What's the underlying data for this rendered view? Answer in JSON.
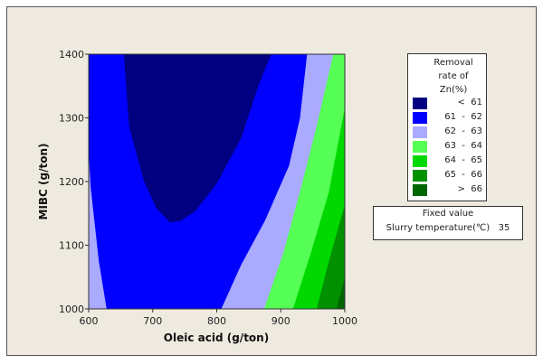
{
  "chart_data": {
    "type": "contour",
    "xlabel": "Oleic acid (g/ton)",
    "ylabel": "MIBC (g/ton)",
    "xlim": [
      600,
      1000
    ],
    "ylim": [
      1000,
      1400
    ],
    "xticks": [
      600,
      700,
      800,
      900,
      1000
    ],
    "yticks": [
      1000,
      1100,
      1200,
      1300,
      1400
    ],
    "legend": {
      "title_lines": [
        "Removal",
        "rate of",
        "Zn(%)"
      ],
      "placement": "right",
      "entries": [
        {
          "label": "<  61",
          "color": "#000080"
        },
        {
          "label": "61  -  62",
          "color": "#0000ff"
        },
        {
          "label": "62  -  63",
          "color": "#aaaaff"
        },
        {
          "label": "63  -  64",
          "color": "#55ff55"
        },
        {
          "label": "64  -  65",
          "color": "#00d800"
        },
        {
          "label": ">  66",
          "color": "#006600"
        }
      ]
    },
    "legend_entries_full": [
      {
        "label": "<  61",
        "color": "#000080"
      },
      {
        "label": "61  -  62",
        "color": "#0000ff"
      },
      {
        "label": "62  -  63",
        "color": "#aaaaff"
      },
      {
        "label": "63  -  64",
        "color": "#55ff55"
      },
      {
        "label": "64  -  65",
        "color": "#00d800"
      },
      {
        "label": "65  -  66",
        "color": "#009000"
      },
      {
        "label": ">  66",
        "color": "#006600"
      }
    ],
    "base_color": "#0000ff",
    "regions": [
      {
        "range": "< 61",
        "color": "#000080",
        "closed": true,
        "points": [
          [
            655,
            1400
          ],
          [
            663,
            1287
          ],
          [
            686,
            1202
          ],
          [
            705,
            1159
          ],
          [
            727,
            1136
          ],
          [
            743,
            1138
          ],
          [
            767,
            1154
          ],
          [
            800,
            1197
          ],
          [
            838,
            1268
          ],
          [
            866,
            1353
          ],
          [
            885,
            1400
          ]
        ]
      },
      {
        "range": "62 - 63 (left)",
        "color": "#aaaaff",
        "closed": true,
        "points": [
          [
            600,
            1249
          ],
          [
            603,
            1192
          ],
          [
            616,
            1074
          ],
          [
            628,
            1000
          ],
          [
            600,
            1000
          ]
        ]
      },
      {
        "range": "62 - 63",
        "color": "#aaaaff",
        "closed": false,
        "points": [
          [
            807,
            1000
          ],
          [
            838,
            1069
          ],
          [
            876,
            1140
          ],
          [
            913,
            1225
          ],
          [
            930,
            1300
          ],
          [
            941,
            1400
          ]
        ]
      },
      {
        "range": "63 - 64",
        "color": "#55ff55",
        "closed": false,
        "points": [
          [
            874,
            1000
          ],
          [
            904,
            1088
          ],
          [
            932,
            1192
          ],
          [
            956,
            1287
          ],
          [
            982,
            1400
          ]
        ]
      },
      {
        "range": "64 - 65",
        "color": "#00d800",
        "closed": false,
        "points": [
          [
            919,
            1000
          ],
          [
            947,
            1088
          ],
          [
            975,
            1183
          ],
          [
            1000,
            1316
          ]
        ]
      },
      {
        "range": "65 - 66",
        "color": "#009000",
        "closed": false,
        "points": [
          [
            956,
            1000
          ],
          [
            975,
            1074
          ],
          [
            1000,
            1164
          ]
        ]
      },
      {
        "range": "> 66",
        "color": "#006600",
        "closed": false,
        "points": [
          [
            987,
            1000
          ],
          [
            1000,
            1050
          ]
        ]
      }
    ],
    "fixed_value": {
      "title": "Fixed value",
      "label": "Slurry temperature(℃)",
      "value": "35"
    }
  }
}
